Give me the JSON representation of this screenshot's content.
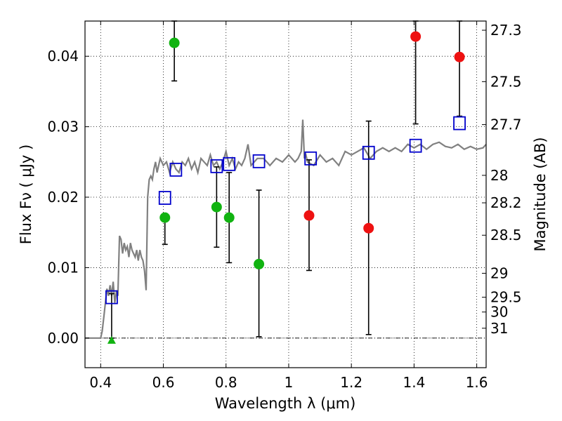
{
  "chart_data": {
    "type": "scatter",
    "xlabel": "Wavelength  λ (μm)",
    "ylabel": "Flux  Fν  ( μJy )",
    "y2label": "Magnitude (AB)",
    "xlim": [
      0.35,
      1.63
    ],
    "ylim": [
      -0.0042,
      0.045
    ],
    "grid": true,
    "x_ticks": [
      {
        "value": 0.4,
        "label": "0.4"
      },
      {
        "value": 0.6,
        "label": "0.6"
      },
      {
        "value": 0.8,
        "label": "0.8"
      },
      {
        "value": 1.0,
        "label": "1"
      },
      {
        "value": 1.2,
        "label": "1.2"
      },
      {
        "value": 1.4,
        "label": "1.4"
      },
      {
        "value": 1.6,
        "label": "1.6"
      }
    ],
    "y_ticks": [
      {
        "value": 0.0,
        "label": "0.00"
      },
      {
        "value": 0.01,
        "label": "0.01"
      },
      {
        "value": 0.02,
        "label": "0.02"
      },
      {
        "value": 0.03,
        "label": "0.03"
      },
      {
        "value": 0.04,
        "label": "0.04"
      }
    ],
    "y2_ticks": [
      {
        "flux": 0.0437,
        "label": "27.3"
      },
      {
        "flux": 0.0364,
        "label": "27.5"
      },
      {
        "flux": 0.0303,
        "label": "27.7"
      },
      {
        "flux": 0.0231,
        "label": "28"
      },
      {
        "flux": 0.0192,
        "label": "28.2"
      },
      {
        "flux": 0.0146,
        "label": "28.5"
      },
      {
        "flux": 0.0092,
        "label": "29"
      },
      {
        "flux": 0.0058,
        "label": "29.5"
      },
      {
        "flux": 0.0037,
        "label": "30"
      },
      {
        "flux": 0.0014,
        "label": "31"
      }
    ],
    "colors": {
      "green": "#11b311",
      "red": "#ee1111",
      "blue": "#0000cc",
      "model": "#808080"
    },
    "model_spectrum": {
      "x": [
        0.35,
        0.36,
        0.37,
        0.38,
        0.39,
        0.4,
        0.405,
        0.41,
        0.415,
        0.42,
        0.425,
        0.43,
        0.435,
        0.44,
        0.445,
        0.45,
        0.455,
        0.46,
        0.465,
        0.47,
        0.475,
        0.48,
        0.485,
        0.49,
        0.495,
        0.5,
        0.505,
        0.51,
        0.515,
        0.52,
        0.525,
        0.53,
        0.535,
        0.54,
        0.545,
        0.55,
        0.555,
        0.56,
        0.565,
        0.57,
        0.575,
        0.58,
        0.585,
        0.59,
        0.6,
        0.61,
        0.62,
        0.63,
        0.64,
        0.65,
        0.66,
        0.67,
        0.68,
        0.69,
        0.7,
        0.71,
        0.72,
        0.73,
        0.74,
        0.75,
        0.76,
        0.77,
        0.78,
        0.79,
        0.8,
        0.81,
        0.82,
        0.83,
        0.84,
        0.85,
        0.86,
        0.87,
        0.88,
        0.89,
        0.9,
        0.92,
        0.94,
        0.96,
        0.98,
        1.0,
        1.02,
        1.03,
        1.04,
        1.045,
        1.05,
        1.055,
        1.06,
        1.08,
        1.1,
        1.12,
        1.14,
        1.16,
        1.18,
        1.2,
        1.22,
        1.24,
        1.26,
        1.28,
        1.3,
        1.32,
        1.34,
        1.36,
        1.38,
        1.4,
        1.42,
        1.44,
        1.46,
        1.48,
        1.5,
        1.52,
        1.54,
        1.56,
        1.58,
        1.6,
        1.62,
        1.63
      ],
      "y": [
        0.0,
        0.0,
        0.0,
        0.0,
        0.0,
        0.0,
        0.001,
        0.003,
        0.005,
        0.007,
        0.006,
        0.0075,
        0.006,
        0.008,
        0.005,
        0.0065,
        0.006,
        0.0145,
        0.014,
        0.012,
        0.0135,
        0.0125,
        0.013,
        0.0115,
        0.0135,
        0.0125,
        0.012,
        0.0115,
        0.0125,
        0.011,
        0.0125,
        0.0115,
        0.011,
        0.0095,
        0.0068,
        0.02,
        0.0225,
        0.023,
        0.0225,
        0.024,
        0.025,
        0.0235,
        0.0245,
        0.0255,
        0.0245,
        0.025,
        0.0235,
        0.025,
        0.024,
        0.0235,
        0.025,
        0.0245,
        0.0255,
        0.024,
        0.025,
        0.0235,
        0.0255,
        0.025,
        0.0245,
        0.026,
        0.0245,
        0.025,
        0.024,
        0.025,
        0.0265,
        0.0245,
        0.0255,
        0.024,
        0.025,
        0.0245,
        0.0255,
        0.0275,
        0.0245,
        0.025,
        0.0255,
        0.0255,
        0.0245,
        0.0255,
        0.025,
        0.026,
        0.025,
        0.0255,
        0.0265,
        0.031,
        0.0255,
        0.026,
        0.025,
        0.0245,
        0.026,
        0.025,
        0.0255,
        0.0245,
        0.0265,
        0.026,
        0.0265,
        0.027,
        0.0255,
        0.0265,
        0.027,
        0.0265,
        0.027,
        0.0265,
        0.0275,
        0.027,
        0.0275,
        0.0268,
        0.0275,
        0.0278,
        0.0272,
        0.027,
        0.0275,
        0.0268,
        0.0272,
        0.0268,
        0.027,
        0.0275
      ]
    },
    "green_points": [
      {
        "x": 0.435,
        "y": -0.0003,
        "err_low": 0.0,
        "err_high": 0.0063,
        "marker": "triangle"
      },
      {
        "x": 0.605,
        "y": 0.0171,
        "err_low": 0.0133,
        "err_high": 0.0171
      },
      {
        "x": 0.635,
        "y": 0.0419,
        "err_low": 0.0365,
        "err_high": 0.045
      },
      {
        "x": 0.77,
        "y": 0.0186,
        "err_low": 0.0129,
        "err_high": 0.0243
      },
      {
        "x": 0.81,
        "y": 0.0171,
        "err_low": 0.0107,
        "err_high": 0.0235
      },
      {
        "x": 0.905,
        "y": 0.0105,
        "err_low": 0.0002,
        "err_high": 0.021
      }
    ],
    "red_points": [
      {
        "x": 1.065,
        "y": 0.0174,
        "err_low": 0.0096,
        "err_high": 0.0253
      },
      {
        "x": 1.255,
        "y": 0.0156,
        "err_low": 0.0005,
        "err_high": 0.0308
      },
      {
        "x": 1.405,
        "y": 0.0428,
        "err_low": 0.0304,
        "err_high": 0.045
      },
      {
        "x": 1.545,
        "y": 0.0399,
        "err_low": 0.0315,
        "err_high": 0.045
      }
    ],
    "blue_squares": [
      {
        "x": 0.435,
        "y": 0.0058
      },
      {
        "x": 0.605,
        "y": 0.0199
      },
      {
        "x": 0.64,
        "y": 0.0239
      },
      {
        "x": 0.77,
        "y": 0.0244
      },
      {
        "x": 0.81,
        "y": 0.0247
      },
      {
        "x": 0.905,
        "y": 0.0251
      },
      {
        "x": 1.07,
        "y": 0.0255
      },
      {
        "x": 1.255,
        "y": 0.0263
      },
      {
        "x": 1.405,
        "y": 0.0273
      },
      {
        "x": 1.545,
        "y": 0.0305
      }
    ]
  }
}
